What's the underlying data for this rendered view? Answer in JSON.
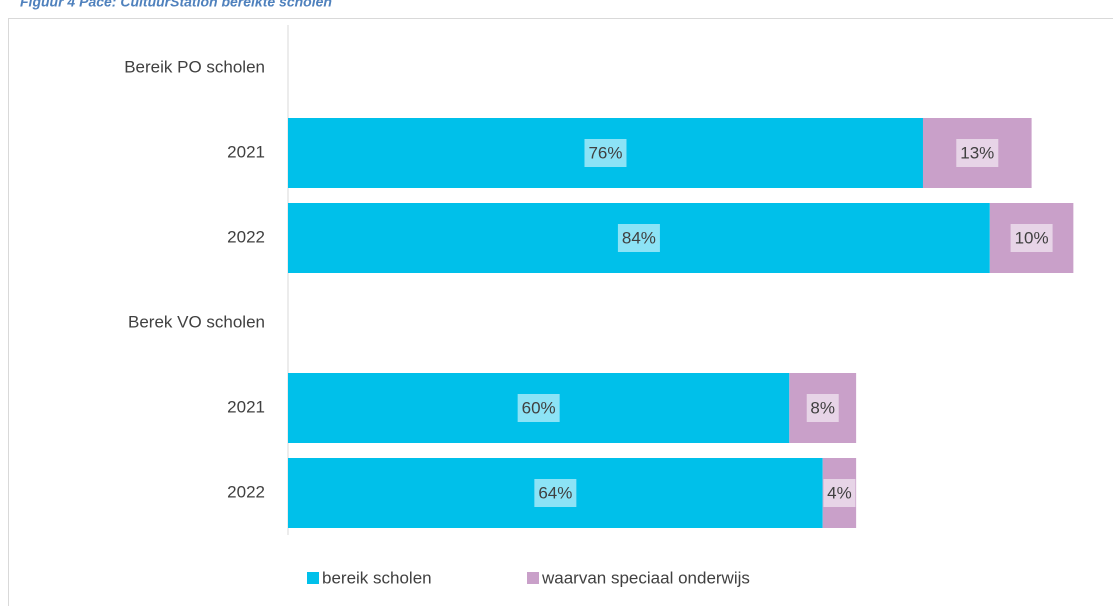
{
  "chart_data": {
    "type": "stacked-barh",
    "title": "Figuur 4 Pace: CultuurStation bereikte scholen",
    "categories": [
      "Bereik PO scholen",
      "2021",
      "2022",
      "Berek VO scholen",
      "2021",
      "2022"
    ],
    "series": [
      {
        "name": "bereik scholen",
        "color": "#00c0ea",
        "values": [
          null,
          76,
          84,
          null,
          60,
          64
        ],
        "value_labels": [
          null,
          "76%",
          "84%",
          null,
          "60%",
          "64%"
        ]
      },
      {
        "name": "waarvan speciaal onderwijs",
        "color": "#c9a0c9",
        "values": [
          null,
          13,
          10,
          null,
          8,
          4
        ],
        "value_labels": [
          null,
          "13%",
          "10%",
          null,
          "8%",
          "4%"
        ]
      }
    ],
    "legend": "bottom"
  }
}
